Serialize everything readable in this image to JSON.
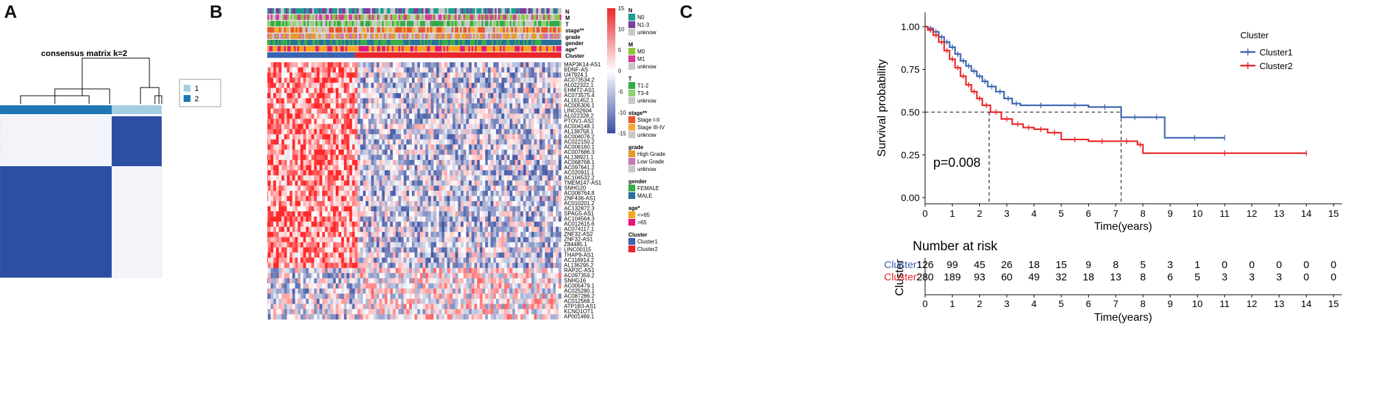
{
  "panel_a": {
    "label": "A",
    "title": "consensus matrix k=2",
    "legend": [
      {
        "key": "1",
        "color": "#a6cee3"
      },
      {
        "key": "2",
        "color": "#1f78b4"
      }
    ],
    "matrix_color": "#2c4fa3",
    "split_fraction": 0.33
  },
  "panel_b": {
    "label": "B",
    "annotation_rows": [
      "N",
      "M",
      "T",
      "stage**",
      "grade",
      "gender",
      "age*",
      "Cluster"
    ],
    "genes": [
      "MAP3K14-AS1",
      "BDNF-AS",
      "U47924.1",
      "AC073534.2",
      "AL022322.1",
      "EHMT2-AS1",
      "AC073575.4",
      "AL161452.1",
      "AC005306.1",
      "LINC02604",
      "AL022328.2",
      "PTOV1-AS2",
      "AC004148.1",
      "AL138758.1",
      "AC004076.2",
      "AC022150.2",
      "AC006160.1",
      "AC007686.3",
      "AL138921.1",
      "AC068768.1",
      "AC097641.2",
      "AC020911.1",
      "AC104532.2",
      "TMEM147-AS1",
      "SNHG20",
      "AC008764.8",
      "ZNF436-AS1",
      "AC010201.2",
      "AC132872.3",
      "SPAG5-AS1",
      "AC104564.3",
      "AC012615.6",
      "AC074117.1",
      "ZNF32-AS2",
      "ZNF32-AS1",
      "Z84485.1",
      "LINC00115",
      "THAP9-AS1",
      "AC116914.2",
      "AL136295.2",
      "RAP2C-AS1",
      "AC097359.2",
      "SNHG16",
      "AC005479.1",
      "AC025280.1",
      "AC087286.2",
      "AC012568.1",
      "ATP1B3-AS1",
      "KCNQ1OT1",
      "AP001469.1"
    ],
    "colorbar": {
      "ticks": [
        "15",
        "10",
        "5",
        "0",
        "-5",
        "-10",
        "-15"
      ],
      "high": "#e8272a",
      "mid": "#ffffff",
      "low": "#3a4fa0"
    },
    "legends": [
      {
        "title": "N",
        "items": [
          {
            "label": "N0",
            "color": "#1c9e8f"
          },
          {
            "label": "N1-3",
            "color": "#7b3f9e"
          },
          {
            "label": "unknow",
            "color": "#c8c8c8"
          }
        ]
      },
      {
        "title": "M",
        "items": [
          {
            "label": "M0",
            "color": "#8cc63e"
          },
          {
            "label": "M1",
            "color": "#d63a9a"
          },
          {
            "label": "unknow",
            "color": "#c8c8c8"
          }
        ]
      },
      {
        "title": "T",
        "items": [
          {
            "label": "T1-2",
            "color": "#37a84a"
          },
          {
            "label": "T3-4",
            "color": "#8ed16f"
          },
          {
            "label": "unknow",
            "color": "#c8c8c8"
          }
        ]
      },
      {
        "title": "stage**",
        "items": [
          {
            "label": "Stage I-II",
            "color": "#e8562a"
          },
          {
            "label": "Stage III-IV",
            "color": "#f2a93b"
          },
          {
            "label": "unknow",
            "color": "#c8c8c8"
          }
        ]
      },
      {
        "title": "grade",
        "items": [
          {
            "label": "High Grade",
            "color": "#e59a2f"
          },
          {
            "label": "Low Grade",
            "color": "#c478b8"
          },
          {
            "label": "unknow",
            "color": "#c8c8c8"
          }
        ]
      },
      {
        "title": "gender",
        "items": [
          {
            "label": "FEMALE",
            "color": "#3aab4a"
          },
          {
            "label": "MALE",
            "color": "#2b6f9c"
          }
        ]
      },
      {
        "title": "age*",
        "items": [
          {
            "label": "<=65",
            "color": "#f5a623"
          },
          {
            "label": ">65",
            "color": "#e6197a"
          }
        ]
      },
      {
        "title": "Cluster",
        "items": [
          {
            "label": "Cluster1",
            "color": "#3a63b0"
          },
          {
            "label": "Cluster2",
            "color": "#e8272a"
          }
        ]
      }
    ]
  },
  "panel_c": {
    "label": "C",
    "risk_title": "Number at risk",
    "risk_ylabel": "Cluster",
    "chart_data": {
      "type": "line",
      "title": "",
      "xlabel": "Time(years)",
      "ylabel": "Survival probability",
      "xlim": [
        0,
        15
      ],
      "ylim": [
        0,
        1
      ],
      "xticks": [
        "0",
        "1",
        "2",
        "3",
        "4",
        "5",
        "6",
        "7",
        "8",
        "9",
        "10",
        "11",
        "12",
        "13",
        "14",
        "15"
      ],
      "yticks": [
        "0.00",
        "0.25",
        "0.50",
        "0.75",
        "1.00"
      ],
      "legend_title": "Cluster",
      "legend_position": "right",
      "annotation": "p=0.008",
      "median_line_y": 0.5,
      "median_times": [
        2.35,
        7.2
      ],
      "series": [
        {
          "name": "Cluster1",
          "color": "#3a63b0",
          "x": [
            0,
            0.1,
            0.3,
            0.5,
            0.7,
            0.9,
            1.1,
            1.3,
            1.5,
            1.7,
            1.9,
            2.1,
            2.3,
            2.6,
            2.9,
            3.2,
            3.5,
            5.0,
            6.0,
            7.2,
            8.2,
            8.8,
            11.0
          ],
          "y": [
            1.0,
            0.99,
            0.97,
            0.94,
            0.91,
            0.88,
            0.84,
            0.8,
            0.77,
            0.74,
            0.71,
            0.68,
            0.65,
            0.62,
            0.58,
            0.55,
            0.54,
            0.54,
            0.53,
            0.47,
            0.47,
            0.35,
            0.35
          ],
          "risk": [
            126,
            99,
            45,
            26,
            18,
            15,
            9,
            8,
            5,
            3,
            1,
            0,
            0,
            0,
            0,
            0
          ]
        },
        {
          "name": "Cluster2",
          "color": "#e8272a",
          "x": [
            0,
            0.1,
            0.3,
            0.5,
            0.7,
            0.9,
            1.1,
            1.3,
            1.5,
            1.7,
            1.9,
            2.1,
            2.4,
            2.8,
            3.2,
            3.6,
            4.0,
            4.5,
            5.0,
            6.0,
            7.0,
            7.8,
            8.0,
            14.0
          ],
          "y": [
            1.0,
            0.98,
            0.95,
            0.91,
            0.86,
            0.81,
            0.76,
            0.71,
            0.66,
            0.62,
            0.58,
            0.54,
            0.5,
            0.46,
            0.43,
            0.41,
            0.4,
            0.38,
            0.34,
            0.33,
            0.33,
            0.31,
            0.26,
            0.26
          ],
          "risk": [
            280,
            189,
            93,
            60,
            49,
            32,
            18,
            13,
            8,
            6,
            5,
            3,
            3,
            3,
            0,
            0
          ]
        }
      ]
    }
  }
}
